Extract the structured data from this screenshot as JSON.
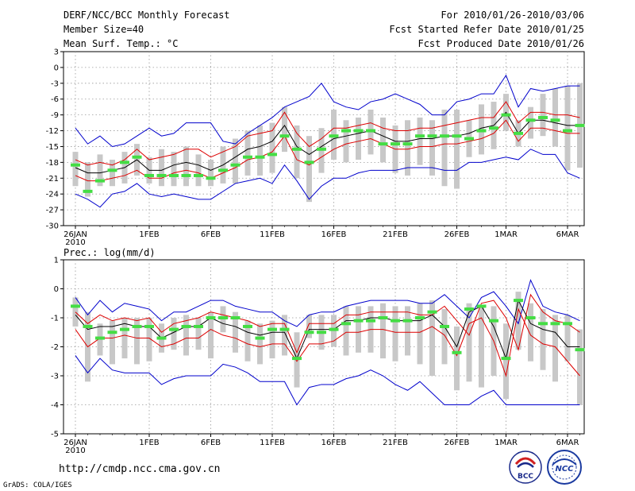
{
  "header": {
    "title": "DERF/NCC/BCC Monthly Forecast",
    "member_size": "Member Size=40",
    "for_range": "For 2010/01/26-2010/03/06",
    "fcst_started": "Fcst Started Refer Date 2010/01/25",
    "fcst_produced": "Fcst Produced Date 2010/01/26"
  },
  "footer": {
    "url": "http://cmdp.ncc.cma.gov.cn",
    "grads": "GrADS: COLA/IGES",
    "logo_left_text": "BCC",
    "logo_right_text": "NCC"
  },
  "colors": {
    "ensemble_box": "#c8c8c8",
    "observed": "#44dd44",
    "mean_line": "#000000",
    "spread_line": "#dd0000",
    "extreme_line": "#0000cc"
  },
  "chart_data": [
    {
      "type": "line",
      "title": "Mean Surf. Temp.: °C",
      "xlabel": "",
      "ylabel": "°C",
      "ylim": [
        -30,
        3
      ],
      "yticks": [
        3,
        0,
        -3,
        -6,
        -9,
        -12,
        -15,
        -18,
        -21,
        -24,
        -27,
        -30
      ],
      "x_tick_labels": [
        {
          "day": 0,
          "label": "26JAN"
        },
        {
          "day": 6,
          "label": "1FEB"
        },
        {
          "day": 11,
          "label": "6FEB"
        },
        {
          "day": 16,
          "label": "11FEB"
        },
        {
          "day": 21,
          "label": "16FEB"
        },
        {
          "day": 26,
          "label": "21FEB"
        },
        {
          "day": 31,
          "label": "26FEB"
        },
        {
          "day": 35,
          "label": "1MAR"
        },
        {
          "day": 40,
          "label": "6MAR"
        }
      ],
      "year_label": "2010",
      "grid": true,
      "series": [
        {
          "name": "maximum",
          "color": "extreme_line",
          "values": [
            -11.5,
            -14.5,
            -13,
            -15,
            -14.5,
            -13,
            -11.5,
            -13,
            -12.5,
            -10.5,
            -10.5,
            -10.5,
            -14,
            -14.5,
            -12.5,
            -11,
            -9.5,
            -7.5,
            -6.5,
            -5.5,
            -3,
            -6.5,
            -7.5,
            -8,
            -6.5,
            -6,
            -5,
            -6,
            -7,
            -9,
            -9,
            -6.5,
            -6,
            -5,
            -5,
            -1.5,
            -7.5,
            -4,
            -4.5,
            -4,
            -3.5,
            -3.5
          ]
        },
        {
          "name": "upper",
          "color": "spread_line",
          "values": [
            -17.5,
            -18.5,
            -18,
            -18.5,
            -17.5,
            -15.5,
            -17.5,
            -17,
            -16.5,
            -15.5,
            -15.5,
            -17,
            -16,
            -15,
            -13,
            -12.5,
            -12,
            -8.5,
            -12.5,
            -15,
            -13.5,
            -11.5,
            -11.5,
            -11,
            -10.5,
            -11.5,
            -12,
            -12,
            -11.5,
            -11.5,
            -11,
            -10.5,
            -10,
            -9.5,
            -9.5,
            -6.5,
            -10.5,
            -8.5,
            -8.5,
            -9,
            -9,
            -9.5
          ]
        },
        {
          "name": "mean",
          "color": "mean_line",
          "values": [
            -19,
            -20,
            -20,
            -19.5,
            -19,
            -17.5,
            -19.5,
            -19.5,
            -18.5,
            -18,
            -18.5,
            -19.5,
            -18.5,
            -17,
            -15.5,
            -15,
            -14,
            -11,
            -15,
            -16.5,
            -15,
            -13.5,
            -13,
            -12.5,
            -12,
            -13,
            -14,
            -14,
            -13.5,
            -13.5,
            -13,
            -13,
            -12.5,
            -11.5,
            -11,
            -8.5,
            -12.5,
            -10,
            -10,
            -10.5,
            -11,
            -11
          ]
        },
        {
          "name": "lower",
          "color": "spread_line",
          "values": [
            -20.5,
            -21.5,
            -21.5,
            -21,
            -20.5,
            -19.5,
            -21,
            -21,
            -20,
            -19.5,
            -20,
            -21,
            -20,
            -19,
            -17.5,
            -17,
            -16,
            -13,
            -17.5,
            -18.5,
            -17,
            -15.5,
            -14.5,
            -14,
            -13.5,
            -14.5,
            -15.5,
            -15.5,
            -15,
            -15,
            -14.5,
            -14.5,
            -14,
            -13.5,
            -12.5,
            -10,
            -14,
            -11.5,
            -11.5,
            -12,
            -12.5,
            -12.5
          ]
        },
        {
          "name": "minimum",
          "color": "extreme_line",
          "values": [
            -24,
            -25,
            -26.5,
            -24,
            -23.5,
            -22,
            -24,
            -24.5,
            -24,
            -24.5,
            -25,
            -25,
            -23.5,
            -22,
            -21.5,
            -21,
            -22,
            -18.5,
            -21.5,
            -25,
            -22.5,
            -21,
            -21,
            -20,
            -19.5,
            -19.5,
            -19.5,
            -19,
            -19,
            -19,
            -19.5,
            -19.5,
            -18,
            -18,
            -17.5,
            -17,
            -17.5,
            -15.5,
            -16.5,
            -16.5,
            -20,
            -21
          ]
        },
        {
          "name": "observed",
          "color": "observed",
          "values": [
            -18.5,
            -23.5,
            -21.5,
            -19.5,
            -18,
            -17,
            -20.5,
            -20.5,
            -20.5,
            -20.5,
            -20.5,
            -21,
            -19.5,
            -18.5,
            -17,
            -17,
            -16.5,
            -13,
            -15.5,
            -18,
            -15.5,
            -13,
            -12,
            -12,
            -12,
            -14.5,
            -14.5,
            -14.5,
            -13,
            -13,
            -13,
            -13,
            -13.5,
            -12,
            -11.5,
            -9,
            -12.5,
            -10,
            -9.5,
            -10,
            -12,
            -11
          ]
        }
      ],
      "ensemble_range": {
        "low": [
          -22.5,
          -24.5,
          -22.5,
          -22.5,
          -22,
          -20.5,
          -22,
          -22.5,
          -22.5,
          -22.5,
          -22.5,
          -22.5,
          -22,
          -22,
          -20.5,
          -20.5,
          -20,
          -16,
          -21,
          -25.5,
          -20,
          -17.5,
          -18,
          -17.5,
          -16.5,
          -18,
          -20,
          -20.5,
          -18.5,
          -20.5,
          -22.5,
          -23,
          -17,
          -16.5,
          -15.5,
          -12,
          -15,
          -13.5,
          -13,
          -15,
          -19.5,
          -19
        ],
        "high": [
          -16,
          -18,
          -16.5,
          -17.5,
          -16,
          -14.5,
          -17,
          -15.5,
          -16,
          -15,
          -16.5,
          -17.5,
          -15,
          -13.5,
          -12,
          -11,
          -10.5,
          -7.5,
          -11,
          -13,
          -11.5,
          -8,
          -10,
          -9.5,
          -8,
          -9.5,
          -11,
          -10,
          -9.5,
          -10,
          -8,
          -8,
          -10,
          -7,
          -6.5,
          -5,
          -10,
          -7.5,
          -5,
          -4,
          -3.5,
          -3
        ]
      }
    },
    {
      "type": "line",
      "title": "Prec.: log(mm/d)",
      "xlabel": "",
      "ylabel": "log(mm/d)",
      "ylim": [
        -5,
        1
      ],
      "yticks": [
        1,
        0,
        -1,
        -2,
        -3,
        -4,
        -5
      ],
      "x_tick_labels": [
        {
          "day": 0,
          "label": "26JAN"
        },
        {
          "day": 6,
          "label": "1FEB"
        },
        {
          "day": 11,
          "label": "6FEB"
        },
        {
          "day": 16,
          "label": "11FEB"
        },
        {
          "day": 21,
          "label": "16FEB"
        },
        {
          "day": 26,
          "label": "21FEB"
        },
        {
          "day": 31,
          "label": "26FEB"
        },
        {
          "day": 35,
          "label": "1MAR"
        },
        {
          "day": 40,
          "label": "6MAR"
        }
      ],
      "year_label": "2010",
      "grid": true,
      "series": [
        {
          "name": "maximum",
          "color": "extreme_line",
          "values": [
            -0.3,
            -0.9,
            -0.4,
            -0.8,
            -0.5,
            -0.6,
            -0.7,
            -1.1,
            -0.8,
            -0.8,
            -0.6,
            -0.4,
            -0.4,
            -0.6,
            -0.7,
            -0.8,
            -0.8,
            -1.1,
            -1.3,
            -0.9,
            -0.8,
            -0.8,
            -0.6,
            -0.5,
            -0.4,
            -0.4,
            -0.4,
            -0.4,
            -0.5,
            -0.5,
            -0.2,
            -0.6,
            -1.0,
            -0.3,
            -0.1,
            -0.6,
            -1.2,
            0.3,
            -0.6,
            -0.8,
            -0.9,
            -1.1
          ]
        },
        {
          "name": "upper",
          "color": "spread_line",
          "values": [
            -0.8,
            -1.2,
            -0.9,
            -1.1,
            -1.0,
            -1.1,
            -1.0,
            -1.5,
            -1.2,
            -1.1,
            -1.0,
            -0.8,
            -0.9,
            -1.0,
            -1.1,
            -1.3,
            -1.2,
            -1.2,
            -2.2,
            -1.2,
            -1.2,
            -1.2,
            -0.9,
            -0.9,
            -0.8,
            -0.8,
            -0.8,
            -0.8,
            -0.9,
            -0.9,
            -0.6,
            -1.1,
            -1.6,
            -0.5,
            -0.4,
            -1.0,
            -2.1,
            -0.2,
            -0.8,
            -1.1,
            -1.2,
            -1.5
          ]
        },
        {
          "name": "mean",
          "color": "mean_line",
          "values": [
            -0.9,
            -1.4,
            -1.3,
            -1.3,
            -1.2,
            -1.3,
            -1.3,
            -1.7,
            -1.5,
            -1.3,
            -1.3,
            -1.0,
            -1.2,
            -1.3,
            -1.5,
            -1.6,
            -1.5,
            -1.5,
            -2.4,
            -1.4,
            -1.4,
            -1.4,
            -1.1,
            -1.1,
            -1.0,
            -1.0,
            -1.1,
            -1.1,
            -1.1,
            -0.9,
            -1.3,
            -2.0,
            -0.8,
            -0.6,
            -1.3,
            -2.4,
            -0.4,
            -1.2,
            -1.4,
            -1.5,
            -2.0,
            -2.0
          ]
        },
        {
          "name": "lower",
          "color": "spread_line",
          "values": [
            -1.4,
            -2.0,
            -1.7,
            -1.7,
            -1.6,
            -1.7,
            -1.7,
            -2.0,
            -1.9,
            -1.7,
            -1.7,
            -1.4,
            -1.6,
            -1.7,
            -1.9,
            -2.0,
            -1.9,
            -1.9,
            -2.5,
            -1.9,
            -1.9,
            -1.8,
            -1.5,
            -1.5,
            -1.4,
            -1.4,
            -1.5,
            -1.5,
            -1.5,
            -1.3,
            -1.6,
            -2.3,
            -1.2,
            -1.0,
            -1.8,
            -3.0,
            -0.7,
            -1.6,
            -1.9,
            -2.0,
            -2.5,
            -3.0
          ]
        },
        {
          "name": "minimum",
          "color": "extreme_line",
          "values": [
            -2.3,
            -2.9,
            -2.4,
            -2.8,
            -2.9,
            -2.9,
            -2.9,
            -3.3,
            -3.1,
            -3.0,
            -3.0,
            -3.0,
            -2.6,
            -2.7,
            -2.9,
            -3.2,
            -3.2,
            -3.2,
            -4.0,
            -3.4,
            -3.3,
            -3.3,
            -3.1,
            -3.0,
            -2.8,
            -3.0,
            -3.3,
            -3.5,
            -3.2,
            -3.6,
            -4.0,
            -4.0,
            -4.0,
            -3.7,
            -3.5,
            -4.0,
            -4.0,
            -4.0,
            -4.0,
            -4.0,
            -4.0,
            -4.0
          ]
        },
        {
          "name": "observed",
          "color": "observed",
          "values": [
            -0.6,
            -1.3,
            -1.7,
            -1.5,
            -1.4,
            -1.3,
            -1.3,
            -1.7,
            -1.4,
            -1.3,
            -1.3,
            -1.0,
            -1.0,
            -1.0,
            -1.3,
            -1.7,
            -1.4,
            -1.4,
            -2.4,
            -1.5,
            -1.5,
            -1.4,
            -1.2,
            -1.1,
            -1.1,
            -1.0,
            -1.1,
            -1.1,
            -1.0,
            -0.8,
            -1.3,
            -2.2,
            -0.7,
            -0.6,
            -1.1,
            -2.4,
            -0.4,
            -1.0,
            -1.2,
            -1.2,
            -1.2,
            -2.1
          ]
        }
      ],
      "ensemble_range": {
        "low": [
          -1.3,
          -3.2,
          -2.3,
          -2.6,
          -2.4,
          -2.6,
          -2.5,
          -2.2,
          -2.1,
          -2.3,
          -2.1,
          -2.4,
          -1.5,
          -2.2,
          -2.5,
          -2.6,
          -2.4,
          -2.3,
          -3.4,
          -1.7,
          -2.1,
          -2.0,
          -2.3,
          -2.2,
          -2.2,
          -2.4,
          -2.5,
          -2.3,
          -2.6,
          -3.0,
          -2.6,
          -3.5,
          -3.2,
          -3.4,
          -3.0,
          -3.8,
          -2.1,
          -2.5,
          -2.8,
          -3.2,
          -2.5,
          -4.0
        ],
        "high": [
          -0.3,
          -0.8,
          -1.2,
          -1.1,
          -1.0,
          -1.0,
          -1.0,
          -1.2,
          -1.0,
          -0.9,
          -1.0,
          -0.8,
          -0.6,
          -0.8,
          -1.1,
          -1.2,
          -1.1,
          -0.9,
          -1.5,
          -0.9,
          -0.9,
          -0.9,
          -0.6,
          -0.6,
          -0.6,
          -0.5,
          -0.6,
          -0.6,
          -0.5,
          -0.4,
          -0.7,
          -1.3,
          -0.5,
          -0.6,
          -0.6,
          -1.2,
          -0.1,
          -0.5,
          -0.7,
          -0.9,
          -0.9,
          -1.4
        ]
      }
    }
  ]
}
